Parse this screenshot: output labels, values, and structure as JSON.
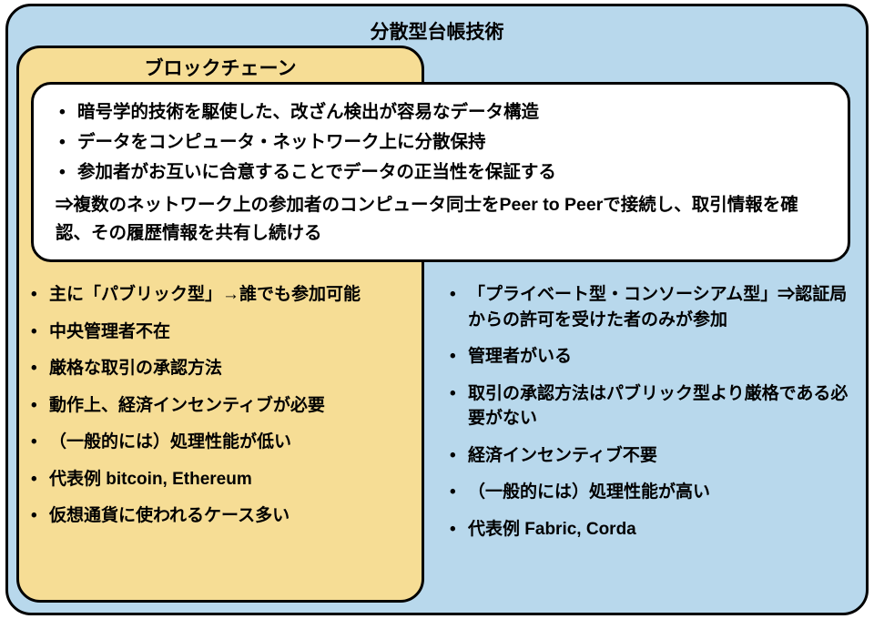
{
  "diagram": {
    "type": "infographic",
    "outer_box": {
      "title": "分散型台帳技術",
      "background_color": "#b8d8ec",
      "border_color": "#000000",
      "border_width": 3,
      "border_radius": 28
    },
    "inner_box": {
      "title": "ブロックチェーン",
      "background_color": "#f6dd95",
      "border_color": "#000000",
      "border_width": 3,
      "border_radius": 26
    },
    "white_box": {
      "background_color": "#ffffff",
      "border_color": "#000000",
      "border_width": 3,
      "border_radius": 22,
      "bullets": [
        "暗号学的技術を駆使した、改ざん検出が容易なデータ構造",
        "データをコンピュータ・ネットワーク上に分散保持",
        "参加者がお互いに合意することでデータの正当性を保証する"
      ],
      "arrow_line": "⇒複数のネットワーク上の参加者のコンピュータ同士をPeer to Peerで接続し、取引情報を確認、その履歴情報を共有し続ける"
    },
    "left_features": [
      "主に「パブリック型」→誰でも参加可能",
      "中央管理者不在",
      "厳格な取引の承認方法",
      "動作上、経済インセンティブが必要",
      "（一般的には）処理性能が低い",
      "代表例 bitcoin, Ethereum",
      "仮想通貨に使われるケース多い"
    ],
    "right_features": [
      "「プライベート型・コンソーシアム型」⇒認証局からの許可を受けた者のみが参加",
      "管理者がいる",
      "取引の承認方法はパブリック型より厳格である必要がない",
      "経済インセンティブ不要",
      "（一般的には）処理性能が高い",
      "代表例 Fabric, Corda"
    ],
    "typography": {
      "title_fontsize": 21,
      "body_fontsize": 19,
      "font_weight": "bold",
      "text_color": "#000000"
    }
  }
}
